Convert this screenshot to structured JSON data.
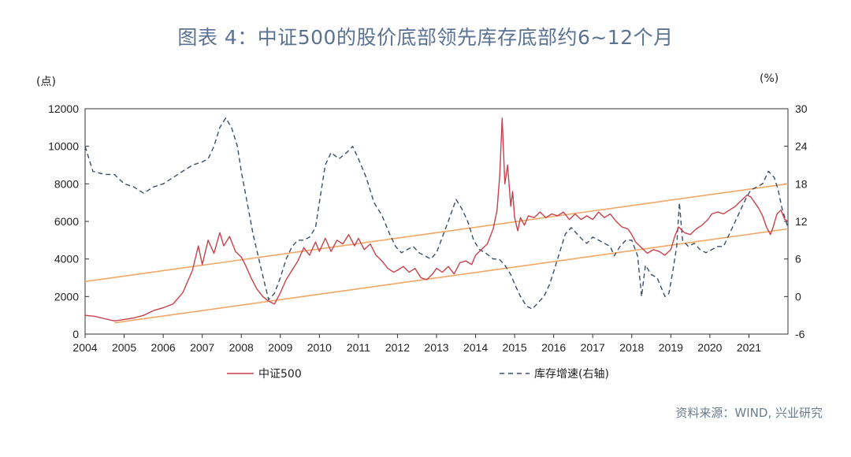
{
  "title": "图表 4：中证500的股价底部领先库存底部约6~12个月",
  "source": "资料来源：WIND, 兴业研究",
  "chart_data": {
    "type": "line",
    "left_unit": "(点)",
    "right_unit": "(%)",
    "x_range": [
      2004.0,
      2022.0
    ],
    "x_ticks": [
      "2004",
      "2005",
      "2006",
      "2007",
      "2008",
      "2009",
      "2010",
      "2011",
      "2012",
      "2013",
      "2014",
      "2015",
      "2016",
      "2017",
      "2018",
      "2019",
      "2020",
      "2021"
    ],
    "y_left": {
      "range": [
        0,
        12000
      ],
      "ticks": [
        "0",
        "2000",
        "4000",
        "6000",
        "8000",
        "10000",
        "12000"
      ]
    },
    "y_right": {
      "range": [
        -6,
        30
      ],
      "ticks": [
        "-6",
        "0",
        "6",
        "12",
        "18",
        "24",
        "30"
      ]
    },
    "grid": false,
    "legend": {
      "position": "bottom"
    },
    "series": [
      {
        "name": "中证500",
        "axis": "left",
        "color": "#c8414b",
        "style": "solid",
        "points": [
          [
            2004.0,
            1000
          ],
          [
            2004.25,
            950
          ],
          [
            2004.5,
            820
          ],
          [
            2004.75,
            700
          ],
          [
            2005.0,
            780
          ],
          [
            2005.25,
            860
          ],
          [
            2005.5,
            1000
          ],
          [
            2005.75,
            1250
          ],
          [
            2006.0,
            1400
          ],
          [
            2006.25,
            1600
          ],
          [
            2006.5,
            2200
          ],
          [
            2006.75,
            3400
          ],
          [
            2006.9,
            4700
          ],
          [
            2007.0,
            3700
          ],
          [
            2007.15,
            5000
          ],
          [
            2007.3,
            4300
          ],
          [
            2007.45,
            5400
          ],
          [
            2007.55,
            4700
          ],
          [
            2007.7,
            5200
          ],
          [
            2007.85,
            4400
          ],
          [
            2008.0,
            4100
          ],
          [
            2008.1,
            3700
          ],
          [
            2008.25,
            3000
          ],
          [
            2008.4,
            2400
          ],
          [
            2008.55,
            2000
          ],
          [
            2008.7,
            1750
          ],
          [
            2008.85,
            1600
          ],
          [
            2009.0,
            2200
          ],
          [
            2009.15,
            2900
          ],
          [
            2009.3,
            3400
          ],
          [
            2009.45,
            3900
          ],
          [
            2009.6,
            4600
          ],
          [
            2009.75,
            4200
          ],
          [
            2009.9,
            4900
          ],
          [
            2010.0,
            4400
          ],
          [
            2010.15,
            5100
          ],
          [
            2010.3,
            4400
          ],
          [
            2010.45,
            5000
          ],
          [
            2010.6,
            4800
          ],
          [
            2010.75,
            5300
          ],
          [
            2010.9,
            4700
          ],
          [
            2011.0,
            5100
          ],
          [
            2011.15,
            4500
          ],
          [
            2011.3,
            4800
          ],
          [
            2011.45,
            4200
          ],
          [
            2011.6,
            3900
          ],
          [
            2011.75,
            3500
          ],
          [
            2011.9,
            3300
          ],
          [
            2012.0,
            3400
          ],
          [
            2012.15,
            3600
          ],
          [
            2012.3,
            3300
          ],
          [
            2012.45,
            3500
          ],
          [
            2012.6,
            3000
          ],
          [
            2012.75,
            2900
          ],
          [
            2012.9,
            3200
          ],
          [
            2013.0,
            3500
          ],
          [
            2013.15,
            3300
          ],
          [
            2013.3,
            3600
          ],
          [
            2013.45,
            3200
          ],
          [
            2013.6,
            3800
          ],
          [
            2013.75,
            3900
          ],
          [
            2013.9,
            3700
          ],
          [
            2014.0,
            4200
          ],
          [
            2014.15,
            4500
          ],
          [
            2014.3,
            4800
          ],
          [
            2014.45,
            5600
          ],
          [
            2014.55,
            6600
          ],
          [
            2014.62,
            8500
          ],
          [
            2014.68,
            11500
          ],
          [
            2014.75,
            8000
          ],
          [
            2014.82,
            9000
          ],
          [
            2014.9,
            6800
          ],
          [
            2014.95,
            7600
          ],
          [
            2015.0,
            6200
          ],
          [
            2015.08,
            5500
          ],
          [
            2015.15,
            6200
          ],
          [
            2015.25,
            5800
          ],
          [
            2015.35,
            6300
          ],
          [
            2015.5,
            6200
          ],
          [
            2015.65,
            6500
          ],
          [
            2015.8,
            6200
          ],
          [
            2015.95,
            6400
          ],
          [
            2016.1,
            6300
          ],
          [
            2016.25,
            6500
          ],
          [
            2016.4,
            6100
          ],
          [
            2016.55,
            6400
          ],
          [
            2016.7,
            6100
          ],
          [
            2016.85,
            6300
          ],
          [
            2017.0,
            6100
          ],
          [
            2017.15,
            6500
          ],
          [
            2017.3,
            6200
          ],
          [
            2017.45,
            6400
          ],
          [
            2017.6,
            6000
          ],
          [
            2017.75,
            5700
          ],
          [
            2017.9,
            5600
          ],
          [
            2018.0,
            5300
          ],
          [
            2018.1,
            4900
          ],
          [
            2018.25,
            4600
          ],
          [
            2018.4,
            4300
          ],
          [
            2018.55,
            4500
          ],
          [
            2018.7,
            4400
          ],
          [
            2018.85,
            4200
          ],
          [
            2019.0,
            4500
          ],
          [
            2019.1,
            5200
          ],
          [
            2019.2,
            5700
          ],
          [
            2019.35,
            5400
          ],
          [
            2019.5,
            5300
          ],
          [
            2019.65,
            5600
          ],
          [
            2019.8,
            5800
          ],
          [
            2019.95,
            6100
          ],
          [
            2020.05,
            6400
          ],
          [
            2020.2,
            6500
          ],
          [
            2020.35,
            6400
          ],
          [
            2020.5,
            6600
          ],
          [
            2020.65,
            6800
          ],
          [
            2020.8,
            7100
          ],
          [
            2020.95,
            7400
          ],
          [
            2021.05,
            7300
          ],
          [
            2021.15,
            7000
          ],
          [
            2021.25,
            6700
          ],
          [
            2021.35,
            6300
          ],
          [
            2021.45,
            5700
          ],
          [
            2021.55,
            5300
          ],
          [
            2021.62,
            5700
          ],
          [
            2021.72,
            6400
          ],
          [
            2021.82,
            6600
          ],
          [
            2021.92,
            6100
          ],
          [
            2022.0,
            6000
          ]
        ]
      },
      {
        "name": "库存增速(右轴)",
        "axis": "right",
        "color": "#3a4f68",
        "style": "dashed",
        "points": [
          [
            2004.0,
            24
          ],
          [
            2004.2,
            20
          ],
          [
            2004.5,
            19.5
          ],
          [
            2004.75,
            19.5
          ],
          [
            2005.0,
            18
          ],
          [
            2005.25,
            17.5
          ],
          [
            2005.5,
            16.5
          ],
          [
            2005.75,
            17.5
          ],
          [
            2006.0,
            18
          ],
          [
            2006.25,
            19
          ],
          [
            2006.5,
            20
          ],
          [
            2006.75,
            21
          ],
          [
            2007.0,
            21.5
          ],
          [
            2007.15,
            22
          ],
          [
            2007.3,
            24
          ],
          [
            2007.45,
            27
          ],
          [
            2007.6,
            28.5
          ],
          [
            2007.75,
            27
          ],
          [
            2007.9,
            24
          ],
          [
            2008.0,
            20
          ],
          [
            2008.15,
            15
          ],
          [
            2008.3,
            10
          ],
          [
            2008.45,
            6
          ],
          [
            2008.6,
            2
          ],
          [
            2008.7,
            -0.5
          ],
          [
            2008.85,
            0.5
          ],
          [
            2009.0,
            3
          ],
          [
            2009.15,
            6
          ],
          [
            2009.3,
            8
          ],
          [
            2009.45,
            9
          ],
          [
            2009.6,
            9
          ],
          [
            2009.75,
            9.5
          ],
          [
            2009.9,
            11
          ],
          [
            2010.0,
            15
          ],
          [
            2010.15,
            21
          ],
          [
            2010.3,
            23
          ],
          [
            2010.5,
            22
          ],
          [
            2010.7,
            23
          ],
          [
            2010.85,
            24
          ],
          [
            2011.0,
            22
          ],
          [
            2011.2,
            19
          ],
          [
            2011.4,
            15
          ],
          [
            2011.6,
            13
          ],
          [
            2011.8,
            10
          ],
          [
            2011.95,
            8
          ],
          [
            2012.1,
            7
          ],
          [
            2012.25,
            7.5
          ],
          [
            2012.4,
            8
          ],
          [
            2012.55,
            7
          ],
          [
            2012.7,
            6.5
          ],
          [
            2012.85,
            6
          ],
          [
            2013.0,
            7
          ],
          [
            2013.15,
            9.5
          ],
          [
            2013.3,
            12
          ],
          [
            2013.5,
            15.5
          ],
          [
            2013.65,
            14
          ],
          [
            2013.8,
            12
          ],
          [
            2013.95,
            9
          ],
          [
            2014.1,
            7.5
          ],
          [
            2014.25,
            7
          ],
          [
            2014.45,
            6
          ],
          [
            2014.6,
            6
          ],
          [
            2014.75,
            5
          ],
          [
            2014.9,
            3.5
          ],
          [
            2015.0,
            2
          ],
          [
            2015.15,
            0
          ],
          [
            2015.3,
            -1.5
          ],
          [
            2015.45,
            -2
          ],
          [
            2015.6,
            -1
          ],
          [
            2015.75,
            0
          ],
          [
            2015.9,
            2
          ],
          [
            2016.0,
            4
          ],
          [
            2016.15,
            7
          ],
          [
            2016.3,
            10
          ],
          [
            2016.45,
            11
          ],
          [
            2016.6,
            10
          ],
          [
            2016.75,
            9
          ],
          [
            2016.85,
            8.5
          ],
          [
            2017.0,
            9.5
          ],
          [
            2017.15,
            9
          ],
          [
            2017.3,
            8.5
          ],
          [
            2017.45,
            8
          ],
          [
            2017.55,
            6.5
          ],
          [
            2017.7,
            8
          ],
          [
            2017.85,
            9
          ],
          [
            2018.0,
            9
          ],
          [
            2018.15,
            6.5
          ],
          [
            2018.25,
            0
          ],
          [
            2018.35,
            5
          ],
          [
            2018.5,
            3.5
          ],
          [
            2018.65,
            3
          ],
          [
            2018.75,
            1.5
          ],
          [
            2018.85,
            0
          ],
          [
            2018.95,
            0.5
          ],
          [
            2019.05,
            4
          ],
          [
            2019.15,
            8
          ],
          [
            2019.22,
            15
          ],
          [
            2019.3,
            9
          ],
          [
            2019.45,
            8
          ],
          [
            2019.6,
            8.5
          ],
          [
            2019.75,
            7.5
          ],
          [
            2019.9,
            7
          ],
          [
            2020.05,
            7.5
          ],
          [
            2020.2,
            8
          ],
          [
            2020.35,
            8
          ],
          [
            2020.5,
            10
          ],
          [
            2020.65,
            12
          ],
          [
            2020.8,
            14
          ],
          [
            2020.95,
            16
          ],
          [
            2021.05,
            17
          ],
          [
            2021.2,
            17.5
          ],
          [
            2021.35,
            18
          ],
          [
            2021.5,
            20
          ],
          [
            2021.65,
            19
          ],
          [
            2021.75,
            17
          ],
          [
            2021.85,
            14
          ],
          [
            2021.95,
            12
          ],
          [
            2022.0,
            11
          ]
        ]
      },
      {
        "name": "",
        "axis": "left",
        "color": "#f2a765",
        "style": "solid",
        "points": [
          [
            2004.0,
            2800
          ],
          [
            2022.0,
            8000
          ]
        ]
      },
      {
        "name": "",
        "axis": "left",
        "color": "#f2a765",
        "style": "solid",
        "points": [
          [
            2004.75,
            600
          ],
          [
            2022.0,
            5600
          ]
        ]
      }
    ]
  }
}
